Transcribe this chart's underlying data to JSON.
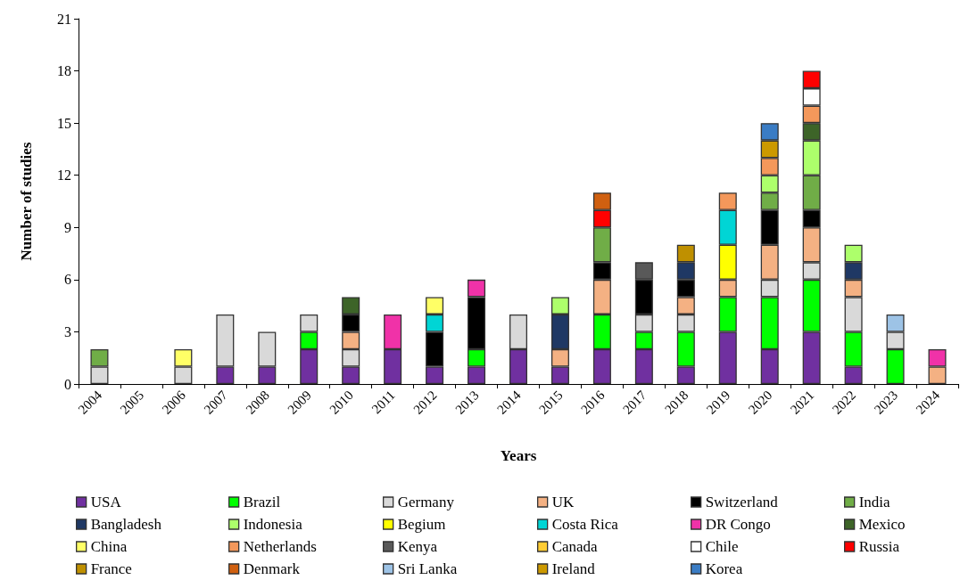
{
  "chart_data": {
    "type": "bar",
    "stacked": true,
    "xlabel": "Years",
    "ylabel": "Number of studies",
    "categories": [
      "2004",
      "2005",
      "2006",
      "2007",
      "2008",
      "2009",
      "2010",
      "2011",
      "2012",
      "2013",
      "2014",
      "2015",
      "2016",
      "2017",
      "2018",
      "2019",
      "2020",
      "2021",
      "2022",
      "2023",
      "2024"
    ],
    "ylim": [
      0,
      21
    ],
    "yticks": [
      0,
      3,
      6,
      9,
      12,
      15,
      18,
      21
    ],
    "grid": false,
    "legend": "bottom",
    "series": [
      {
        "name": "USA",
        "color": "#7030a0",
        "values": [
          null,
          null,
          null,
          1,
          1,
          2,
          1,
          2,
          1,
          1,
          2,
          1,
          2,
          2,
          1,
          3,
          2,
          3,
          1,
          null,
          null
        ]
      },
      {
        "name": "Brazil",
        "color": "#00ff00",
        "values": [
          null,
          null,
          null,
          null,
          null,
          1,
          null,
          null,
          null,
          1,
          null,
          null,
          2,
          1,
          2,
          2,
          3,
          3,
          2,
          2,
          null
        ]
      },
      {
        "name": "Germany",
        "color": "#d9d9d9",
        "values": [
          1,
          null,
          1,
          3,
          2,
          1,
          1,
          null,
          null,
          null,
          2,
          null,
          null,
          1,
          1,
          null,
          1,
          1,
          2,
          1,
          null
        ]
      },
      {
        "name": "UK",
        "color": "#f4b183",
        "values": [
          null,
          null,
          null,
          null,
          null,
          null,
          1,
          null,
          null,
          null,
          null,
          1,
          2,
          null,
          1,
          1,
          2,
          2,
          1,
          null,
          1
        ]
      },
      {
        "name": "Switzerland",
        "color": "#000000",
        "values": [
          null,
          null,
          null,
          null,
          null,
          null,
          1,
          null,
          2,
          3,
          null,
          null,
          1,
          2,
          1,
          null,
          2,
          1,
          null,
          null,
          null
        ]
      },
      {
        "name": "India",
        "color": "#70ad47",
        "values": [
          1,
          null,
          null,
          null,
          null,
          null,
          null,
          null,
          null,
          null,
          null,
          null,
          2,
          null,
          null,
          null,
          1,
          2,
          null,
          null,
          null
        ]
      },
      {
        "name": "Bangladesh",
        "color": "#1f3864",
        "values": [
          null,
          null,
          null,
          null,
          null,
          null,
          null,
          null,
          null,
          null,
          null,
          2,
          null,
          null,
          1,
          null,
          null,
          null,
          1,
          null,
          null
        ]
      },
      {
        "name": "Indonesia",
        "color": "#adff6b",
        "values": [
          null,
          null,
          null,
          null,
          null,
          null,
          null,
          null,
          null,
          null,
          null,
          1,
          null,
          null,
          null,
          null,
          1,
          2,
          1,
          null,
          null
        ]
      },
      {
        "name": "Begium",
        "color": "#ffff00",
        "values": [
          null,
          null,
          null,
          null,
          null,
          null,
          null,
          null,
          null,
          null,
          null,
          null,
          null,
          null,
          null,
          2,
          null,
          null,
          null,
          null,
          null
        ]
      },
      {
        "name": "Costa Rica",
        "color": "#00d5d5",
        "values": [
          null,
          null,
          null,
          null,
          null,
          null,
          null,
          null,
          1,
          null,
          null,
          null,
          null,
          null,
          null,
          2,
          null,
          null,
          null,
          null,
          null
        ]
      },
      {
        "name": "DR Congo",
        "color": "#f032a8",
        "values": [
          null,
          null,
          null,
          null,
          null,
          null,
          null,
          2,
          null,
          1,
          null,
          null,
          null,
          null,
          null,
          null,
          null,
          null,
          null,
          null,
          1
        ]
      },
      {
        "name": "Mexico",
        "color": "#3d6428",
        "values": [
          null,
          null,
          null,
          null,
          null,
          null,
          1,
          null,
          null,
          null,
          null,
          null,
          null,
          null,
          null,
          null,
          null,
          1,
          null,
          null,
          null
        ]
      },
      {
        "name": "China",
        "color": "#ffff66",
        "values": [
          null,
          null,
          1,
          null,
          null,
          null,
          null,
          null,
          1,
          null,
          null,
          null,
          null,
          null,
          null,
          null,
          null,
          null,
          null,
          null,
          null
        ]
      },
      {
        "name": "Netherlands",
        "color": "#f4985b",
        "values": [
          null,
          null,
          null,
          null,
          null,
          null,
          null,
          null,
          null,
          null,
          null,
          null,
          null,
          null,
          null,
          1,
          1,
          1,
          null,
          null,
          null
        ]
      },
      {
        "name": "Kenya",
        "color": "#595959",
        "values": [
          null,
          null,
          null,
          null,
          null,
          null,
          null,
          null,
          null,
          null,
          null,
          null,
          null,
          1,
          null,
          null,
          null,
          null,
          null,
          null,
          null
        ]
      },
      {
        "name": "Canada",
        "color": "#ffcc33",
        "values": [
          null,
          null,
          null,
          null,
          null,
          null,
          null,
          null,
          null,
          null,
          null,
          null,
          null,
          null,
          null,
          null,
          null,
          null,
          null,
          null,
          null
        ]
      },
      {
        "name": "Chile",
        "color": "#ffffff",
        "values": [
          null,
          null,
          null,
          null,
          null,
          null,
          null,
          null,
          null,
          null,
          null,
          null,
          null,
          null,
          null,
          null,
          null,
          1,
          null,
          null,
          null
        ]
      },
      {
        "name": "Russia",
        "color": "#ff0000",
        "values": [
          null,
          null,
          null,
          null,
          null,
          null,
          null,
          null,
          null,
          null,
          null,
          null,
          1,
          null,
          null,
          null,
          null,
          1,
          null,
          null,
          null
        ]
      },
      {
        "name": "France",
        "color": "#bf9000",
        "values": [
          null,
          null,
          null,
          null,
          null,
          null,
          null,
          null,
          null,
          null,
          null,
          null,
          null,
          null,
          1,
          null,
          null,
          null,
          null,
          null,
          null
        ]
      },
      {
        "name": "Denmark",
        "color": "#d06010",
        "values": [
          null,
          null,
          null,
          null,
          null,
          null,
          null,
          null,
          null,
          null,
          null,
          null,
          1,
          null,
          null,
          null,
          null,
          null,
          null,
          null,
          null
        ]
      },
      {
        "name": "Sri Lanka",
        "color": "#9dc3e6",
        "values": [
          null,
          null,
          null,
          null,
          null,
          null,
          null,
          null,
          null,
          null,
          null,
          null,
          null,
          null,
          null,
          null,
          null,
          null,
          null,
          1,
          null
        ]
      },
      {
        "name": "Ireland",
        "color": "#cc9900",
        "values": [
          null,
          null,
          null,
          null,
          null,
          null,
          null,
          null,
          null,
          null,
          null,
          null,
          null,
          null,
          null,
          null,
          1,
          null,
          null,
          null,
          null
        ]
      },
      {
        "name": "Korea",
        "color": "#3a7cc4",
        "values": [
          null,
          null,
          null,
          null,
          null,
          null,
          null,
          null,
          null,
          null,
          null,
          null,
          null,
          null,
          null,
          null,
          1,
          null,
          null,
          null,
          null
        ]
      }
    ]
  }
}
